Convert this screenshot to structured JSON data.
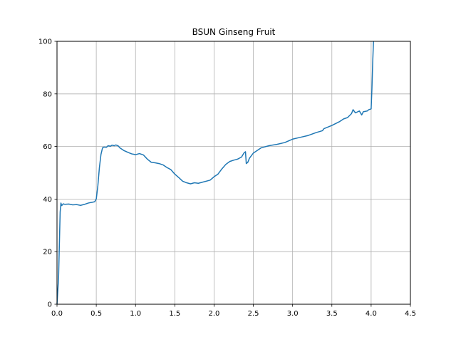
{
  "chart_data": {
    "type": "line",
    "title": "BSUN Ginseng Fruit",
    "xlabel": "",
    "ylabel": "",
    "xlim": [
      0.0,
      4.5
    ],
    "ylim": [
      0,
      100
    ],
    "xticks": [
      0.0,
      0.5,
      1.0,
      1.5,
      2.0,
      2.5,
      3.0,
      3.5,
      4.0,
      4.5
    ],
    "xtick_labels": [
      "0.0",
      "0.5",
      "1.0",
      "1.5",
      "2.0",
      "2.5",
      "3.0",
      "3.5",
      "4.0",
      "4.5"
    ],
    "yticks": [
      0,
      20,
      40,
      60,
      80,
      100
    ],
    "ytick_labels": [
      "0",
      "20",
      "40",
      "60",
      "80",
      "100"
    ],
    "grid": true,
    "series": [
      {
        "color": "#1f77b4",
        "x": [
          0.0,
          0.02,
          0.04,
          0.05,
          0.06,
          0.08,
          0.1,
          0.15,
          0.2,
          0.25,
          0.3,
          0.35,
          0.4,
          0.45,
          0.48,
          0.5,
          0.52,
          0.54,
          0.56,
          0.58,
          0.6,
          0.63,
          0.65,
          0.68,
          0.7,
          0.73,
          0.75,
          0.78,
          0.8,
          0.85,
          0.9,
          0.95,
          1.0,
          1.05,
          1.1,
          1.15,
          1.2,
          1.25,
          1.3,
          1.35,
          1.4,
          1.45,
          1.5,
          1.55,
          1.6,
          1.65,
          1.7,
          1.75,
          1.8,
          1.85,
          1.9,
          1.95,
          2.0,
          2.05,
          2.1,
          2.15,
          2.2,
          2.25,
          2.3,
          2.35,
          2.38,
          2.4,
          2.41,
          2.43,
          2.45,
          2.5,
          2.55,
          2.6,
          2.7,
          2.8,
          2.9,
          3.0,
          3.1,
          3.2,
          3.3,
          3.38,
          3.4,
          3.5,
          3.6,
          3.65,
          3.7,
          3.75,
          3.77,
          3.8,
          3.85,
          3.88,
          3.9,
          3.95,
          3.97,
          4.0,
          4.01,
          4.02,
          4.03
        ],
        "y": [
          0,
          10,
          35,
          38.5,
          37.5,
          38.2,
          38,
          38.1,
          37.8,
          37.9,
          37.6,
          38,
          38.5,
          38.8,
          39,
          40,
          45,
          52,
          57,
          59.5,
          59.8,
          59.7,
          60.3,
          60.1,
          60.5,
          60.3,
          60.6,
          60.2,
          59.5,
          58.5,
          57.8,
          57.2,
          56.9,
          57.3,
          56.8,
          55.2,
          54.0,
          53.8,
          53.5,
          53.0,
          52.0,
          51.2,
          49.5,
          48.2,
          46.8,
          46.2,
          45.8,
          46.2,
          46.0,
          46.4,
          46.8,
          47.2,
          48.5,
          49.5,
          51.5,
          53.2,
          54.3,
          54.8,
          55.2,
          56.0,
          57.5,
          58.0,
          53.5,
          54.0,
          55.5,
          57.5,
          58.5,
          59.5,
          60.3,
          60.8,
          61.5,
          62.8,
          63.5,
          64.2,
          65.3,
          66.0,
          66.8,
          68.0,
          69.5,
          70.5,
          71.0,
          72.5,
          74.0,
          72.8,
          73.5,
          72.0,
          73.2,
          73.5,
          74.0,
          74.3,
          82.0,
          92.0,
          100.0
        ]
      }
    ]
  }
}
